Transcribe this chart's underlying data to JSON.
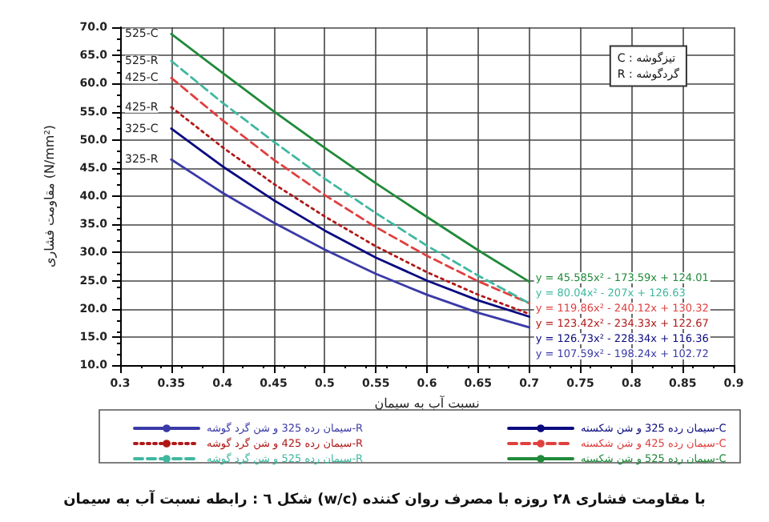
{
  "chart_data": {
    "type": "line",
    "title": "شکل ٦ : رابطه نسبت آب به سیمان (w/c) با مقاومت فشاری ٢٨ روزه با مصرف روان کننده",
    "xlabel": "نسبت آب به سیمان",
    "ylabel": "مقاومت فشاری (N/mm²)",
    "x": [
      0.35,
      0.4,
      0.45,
      0.5,
      0.55,
      0.6,
      0.65,
      0.7
    ],
    "series": [
      {
        "name": "سیمان رده 325 و شن گرد گوشه-R",
        "color": "#3a3aa8",
        "line_style": "solid",
        "values": [
          46.5,
          40.6,
          35.3,
          30.5,
          26.2,
          22.5,
          19.3,
          16.7
        ]
      },
      {
        "name": "سیمان رده 325 و شن شکسته-C",
        "color": "#0a0a80",
        "line_style": "solid",
        "values": [
          52.0,
          45.3,
          39.3,
          33.9,
          29.1,
          25.0,
          21.5,
          18.6
        ]
      },
      {
        "name": "سیمان رده 425 و شن گرد گوشه-R",
        "color": "#b01818",
        "line_style": "dotted",
        "values": [
          55.8,
          48.7,
          42.2,
          36.4,
          31.1,
          26.5,
          22.5,
          19.1
        ]
      },
      {
        "name": "سیمان رده 425 و شن شکسته-C",
        "color": "#e04040",
        "line_style": "dashed",
        "values": [
          61.0,
          53.5,
          46.5,
          40.2,
          34.5,
          29.4,
          24.9,
          21.0
        ]
      },
      {
        "name": "سیمان رده 525 و شن گرد گوشه-R",
        "color": "#40b8a0",
        "line_style": "dashed",
        "values": [
          64.0,
          56.6,
          49.7,
          43.1,
          37.0,
          31.2,
          25.9,
          21.0
        ]
      },
      {
        "name": "سیمان رده 525 و شن شکسته-C",
        "color": "#208a3a",
        "line_style": "solid",
        "values": [
          68.8,
          61.9,
          55.1,
          48.6,
          42.3,
          36.3,
          30.4,
          24.8
        ]
      }
    ],
    "xlim": [
      0.3,
      0.9
    ],
    "xticks": [
      0.3,
      0.35,
      0.4,
      0.45,
      0.5,
      0.55,
      0.6,
      0.65,
      0.7,
      0.75,
      0.8,
      0.85,
      0.9
    ],
    "ylim": [
      10,
      70
    ],
    "yticks": [
      {
        "value": 10,
        "label": "10.0"
      },
      {
        "value": 15,
        "label": "15.0"
      },
      {
        "value": 20,
        "label": "20.0"
      },
      {
        "value": 25,
        "label": "25.0"
      },
      {
        "value": 30,
        "label": "30.0"
      },
      {
        "value": 35,
        "label": "35.0"
      },
      {
        "value": 40,
        "label": "40.0"
      },
      {
        "value": 45,
        "label": "45.0"
      },
      {
        "value": 50,
        "label": "50.0"
      },
      {
        "value": 55,
        "label": "55.0"
      },
      {
        "value": 60,
        "label": "60.0"
      },
      {
        "value": 65,
        "label": "65.0"
      },
      {
        "value": 70,
        "label": "70.0"
      }
    ],
    "grid": true,
    "legend": "bottom",
    "marker": "none",
    "annotations": [
      "525-C",
      "525-R",
      "425-C",
      "425-R",
      "325-C",
      "325-R",
      "C : تیزگوشه",
      "R : گردگوشه",
      "y = 45.585x² - 173.59x + 124.01",
      "y = 80.04x² - 207x + 126.63",
      "y = 119.86x² - 240.12x + 130.32",
      "y = 123.42x² - 234.33x + 122.67",
      "y = 126.73x² - 228.34x + 116.36",
      "y = 107.59x² - 198.24x + 102.72"
    ]
  }
}
